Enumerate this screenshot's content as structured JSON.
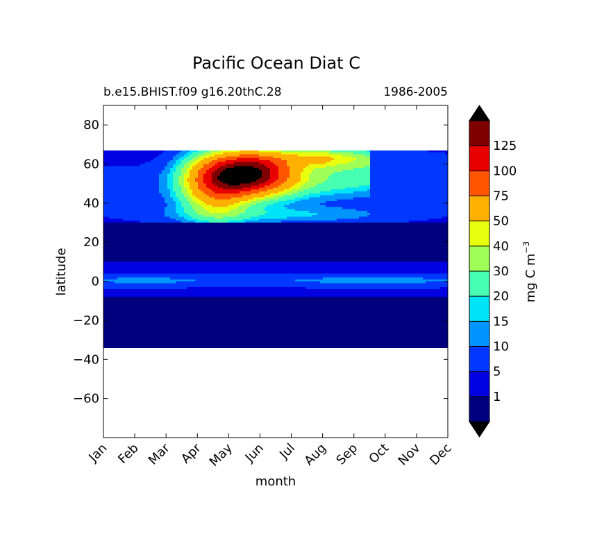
{
  "chart_data": {
    "type": "heatmap",
    "title": "Pacific Ocean Diat C",
    "subtitle_left": "b.e15.BHIST.f09 g16.20thC.28",
    "subtitle_right": "1986-2005",
    "xlabel": "month",
    "ylabel": "latitude",
    "x_ticks": [
      "Jan",
      "Feb",
      "Mar",
      "Apr",
      "May",
      "Jun",
      "Jul",
      "Aug",
      "Sep",
      "Oct",
      "Nov",
      "Dec"
    ],
    "y_ticks": [
      80,
      60,
      40,
      20,
      0,
      -20,
      -40,
      -60
    ],
    "xlim": [
      0,
      11
    ],
    "ylim": [
      -80,
      90
    ],
    "data_lat_range": [
      -34,
      67
    ],
    "colorbar": {
      "label": "mg C m",
      "label_superscript": "−3",
      "levels": [
        0,
        1,
        5,
        10,
        15,
        20,
        30,
        40,
        50,
        75,
        100,
        125,
        150
      ],
      "tick_labels": [
        "1",
        "5",
        "10",
        "15",
        "20",
        "30",
        "40",
        "50",
        "75",
        "100",
        "125"
      ],
      "colors": [
        "#00007f",
        "#0000e0",
        "#0038ff",
        "#0094ff",
        "#00e4f8",
        "#46ffb0",
        "#a0ff56",
        "#e8ff0e",
        "#ffb000",
        "#ff5500",
        "#e80000",
        "#800000"
      ],
      "under_color": "#000000",
      "over_color": "#000000",
      "extend": "both"
    },
    "bloom_peak_color": "#000000",
    "bloom": {
      "peak_month": 4.6,
      "peak_lat": 56,
      "peak_value": 160
    }
  }
}
